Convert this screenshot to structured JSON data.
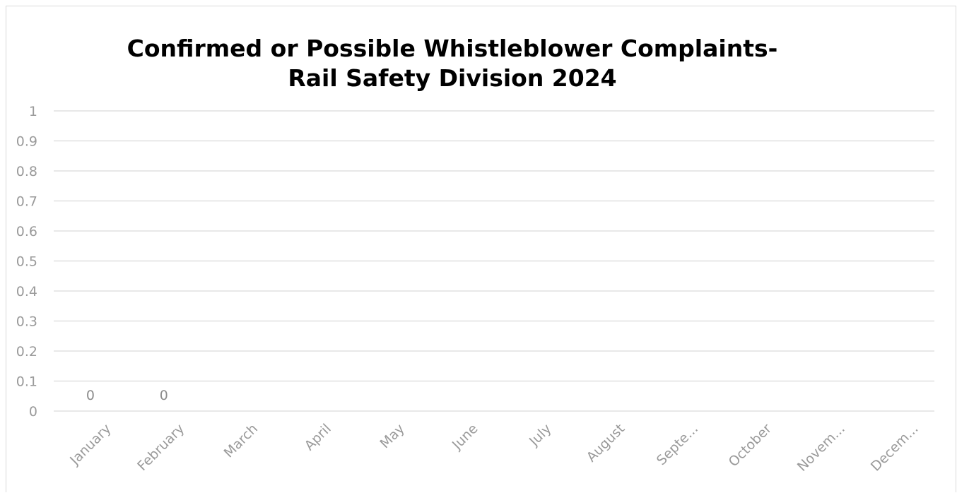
{
  "chart_data": {
    "type": "bar",
    "title": "Confirmed or Possible Whistleblower Complaints- Rail Safety Division 2024",
    "xlabel": "",
    "ylabel": "",
    "ylim": [
      0,
      1
    ],
    "y_ticks": [
      "0",
      "0.1",
      "0.2",
      "0.3",
      "0.4",
      "0.5",
      "0.6",
      "0.7",
      "0.8",
      "0.9",
      "1"
    ],
    "categories": [
      "January",
      "February",
      "March",
      "April",
      "May",
      "June",
      "July",
      "August",
      "Septe...",
      "October",
      "Novem...",
      "Decem..."
    ],
    "values": [
      0,
      0,
      null,
      null,
      null,
      null,
      null,
      null,
      null,
      null,
      null,
      null
    ],
    "data_labels": [
      "0",
      "0",
      "",
      "",
      "",
      "",
      "",
      "",
      "",
      "",
      "",
      ""
    ],
    "grid": true,
    "legend": "none",
    "colors": {
      "grid": "#d9d9d9",
      "tick": "#9a9a9a",
      "title": "#000000"
    }
  }
}
